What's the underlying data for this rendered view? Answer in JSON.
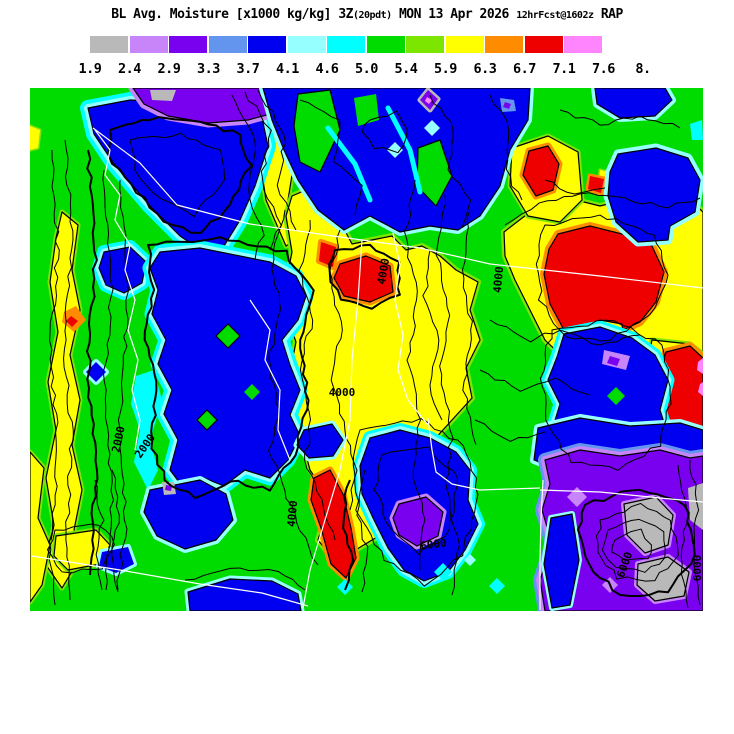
{
  "title": {
    "variable": "BL Avg. Moisture [x1000 kg/kg]",
    "run_hour": "3Z",
    "run_local": "(20pdt)",
    "valid_time": "MON 13 Apr 2026",
    "forecast_info": "12hrFcst@1602z",
    "model": "RAP"
  },
  "colorbar": {
    "tick_labels": [
      "1.9",
      "2.4",
      "2.9",
      "3.3",
      "3.7",
      "4.1",
      "4.6",
      "5.0",
      "5.4",
      "5.9",
      "6.3",
      "6.7",
      "7.1",
      "7.6",
      "8."
    ],
    "colors": [
      "#b9b9b9",
      "#c885fa",
      "#7a00f0",
      "#6495ee",
      "#0000f0",
      "#96ffff",
      "#00ffff",
      "#00dc00",
      "#7ce600",
      "#ffff00",
      "#ff8c00",
      "#ee0000",
      "#ff85ff",
      "#ffffff"
    ]
  },
  "palette": {
    "gray": "#b9b9b9",
    "lightpurple": "#c885fa",
    "purple": "#7a00f0",
    "cornflower": "#6495ee",
    "blue": "#0000f0",
    "palecyan": "#96ffff",
    "cyan": "#00ffff",
    "green": "#00dc00",
    "yellowgreen": "#7ce600",
    "yellow": "#ffff00",
    "orange": "#ff8c00",
    "red": "#ee0000",
    "magenta": "#ff85ff",
    "white": "#ffffff",
    "contour": "#000000",
    "border": "#ffffff"
  },
  "map": {
    "contour_labels": [
      "2000",
      "4000",
      "4000",
      "4000",
      "4000",
      "6000",
      "6000",
      "6000",
      "2000"
    ]
  },
  "chart_data": {
    "type": "filled-contour-map",
    "variable": "BL Avg. Moisture",
    "units": "x1000 kg/kg",
    "valid": "3Z(20pdt) MON 13 Apr 2026",
    "forecast": "12hrFcst@1602z",
    "model": "RAP",
    "levels": [
      1.9,
      2.4,
      2.9,
      3.3,
      3.7,
      4.1,
      4.6,
      5.0,
      5.4,
      5.9,
      6.3,
      6.7,
      7.1,
      7.6,
      8.0
    ],
    "level_colors": [
      "#b9b9b9",
      "#c885fa",
      "#7a00f0",
      "#6495ee",
      "#0000f0",
      "#96ffff",
      "#00ffff",
      "#00dc00",
      "#7ce600",
      "#ffff00",
      "#ff8c00",
      "#ee0000",
      "#ff85ff",
      "#ffffff"
    ],
    "overlay_contour_values": [
      2000,
      4000,
      6000
    ],
    "legend_position": "top",
    "overlays": [
      "terrain height contours (black)",
      "state borders and rivers (white)"
    ]
  }
}
